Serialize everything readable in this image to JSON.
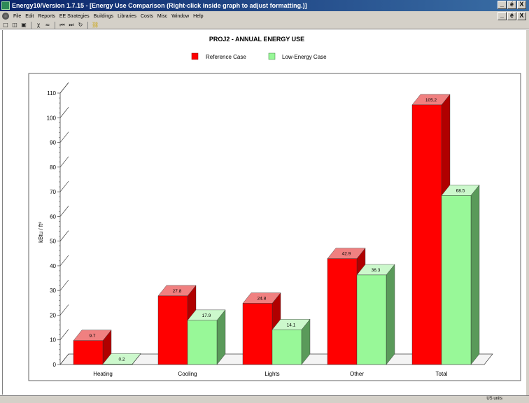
{
  "window": {
    "title": "Energy10/Version 1.7.15 - [Energy Use Comparison   (Right-click inside graph to adjust formatting.)]",
    "controls": [
      "_",
      "é",
      "X"
    ]
  },
  "menubar": {
    "items": [
      "File",
      "Edit",
      "Reports",
      "EE Strategies",
      "Buildings",
      "Libraries",
      "Costs",
      "Misc",
      "Window",
      "Help"
    ],
    "controls": [
      "_",
      "é",
      "X"
    ]
  },
  "toolbar": {
    "icons": [
      "new-file-icon",
      "open-folder-icon",
      "save-icon",
      "run-icon",
      "run-all-icon",
      "rewind-icon",
      "fast-forward-icon",
      "refresh-icon",
      "key-icon"
    ]
  },
  "status": {
    "units": "US units"
  },
  "chart_data": {
    "type": "bar",
    "title": "PROJ2 - ANNUAL ENERGY USE",
    "ylabel": "kBtu / ft²",
    "xlabel": "",
    "ylim": [
      0,
      110
    ],
    "yticks": [
      0,
      10,
      20,
      30,
      40,
      50,
      60,
      70,
      80,
      90,
      100,
      110
    ],
    "categories": [
      "Heating",
      "Cooling",
      "Lights",
      "Other",
      "Total"
    ],
    "series": [
      {
        "name": "Reference Case",
        "values": [
          9.7,
          27.8,
          24.8,
          42.9,
          105.2
        ],
        "labels": [
          "9.7",
          "27.8",
          "24.8",
          "42.9",
          "105.2"
        ],
        "color": "#ff0000",
        "top_color": "#f08080",
        "side_color": "#b00000"
      },
      {
        "name": "Low-Energy Case",
        "values": [
          0.2,
          17.9,
          14.1,
          36.3,
          68.5
        ],
        "labels": [
          "0.2",
          "17.9",
          "14.1",
          "36.3",
          "68.5"
        ],
        "color": "#98f898",
        "top_color": "#ccf8cc",
        "side_color": "#5a9a5a"
      }
    ],
    "grid": false,
    "legend": "top-center",
    "style": "3d"
  }
}
